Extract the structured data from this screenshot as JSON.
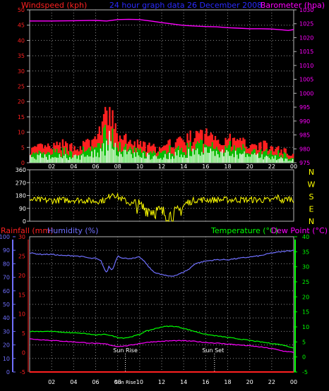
{
  "colors": {
    "background": "#000000",
    "frame": "#b8b8b8",
    "grid": "#8c8c8c",
    "wind": "#ff2020",
    "gust": "#00c000",
    "wind_light": "#ccffcc",
    "barometer": "#ff00ff",
    "title": "#2a2aff",
    "direction": "#ffff00",
    "humidity": "#7070ff",
    "temperature": "#00ff00",
    "dewpoint": "#ff00ff",
    "rainfall": "#ff2020",
    "sun": "#ffffff"
  },
  "header": {
    "windspeed_label": "Windspeed (kph)",
    "title": "24 hour graph data 26 December 2008",
    "barometer_label": "Barometer (hpa)"
  },
  "x_ticks": [
    "02",
    "04",
    "06",
    "08",
    "10",
    "12",
    "14",
    "16",
    "18",
    "20",
    "22",
    "00"
  ],
  "middle": {
    "left_ticks": [
      "360",
      "270",
      "180",
      "90",
      "0"
    ],
    "compass": [
      "N",
      "W",
      "S",
      "E",
      "N"
    ]
  },
  "bottom_header": {
    "rainfall_label": "Rainfall (mm)",
    "humidity_label": "Humidity (%)",
    "temperature_label": "Temperature (°C)",
    "dewpoint_label": "Dew Point (°C)"
  },
  "annotations": {
    "sun_rise": "Sun Rise",
    "sun_set": "Sun Set",
    "sun_rise_axis": "Sun Rise"
  },
  "chart_data": [
    {
      "type": "area",
      "name": "wind_and_pressure",
      "x_unit": "hour",
      "xlim": [
        0,
        24
      ],
      "ylim_left": [
        0,
        50
      ],
      "ylim_right": [
        975,
        1030
      ],
      "left_ticks": [
        0,
        5,
        10,
        15,
        20,
        25,
        30,
        35,
        40,
        45,
        50
      ],
      "right_ticks": [
        975,
        980,
        985,
        990,
        995,
        1000,
        1005,
        1010,
        1015,
        1020,
        1025,
        1030
      ],
      "grid": true,
      "series": [
        {
          "name": "Barometer (hpa)",
          "axis": "right",
          "x": [
            0,
            2,
            4,
            6,
            7,
            8,
            9,
            10,
            11,
            12,
            13,
            14,
            15,
            16,
            17,
            18,
            19,
            20,
            21,
            22,
            23,
            23.5,
            24
          ],
          "values": [
            1026.0,
            1026.0,
            1026.1,
            1026.2,
            1026.0,
            1026.5,
            1026.6,
            1026.5,
            1026.0,
            1025.4,
            1024.9,
            1024.4,
            1024.2,
            1024.0,
            1023.9,
            1023.6,
            1023.4,
            1023.2,
            1023.2,
            1023.1,
            1022.8,
            1022.6,
            1022.9
          ]
        }
      ],
      "wind_profile": {
        "x": [
          0,
          1,
          2,
          3,
          4,
          5,
          6,
          6.5,
          7,
          7.2,
          7.5,
          8,
          9,
          10,
          11,
          12,
          13,
          14,
          15,
          16,
          17,
          18,
          19,
          20,
          21,
          22,
          23,
          24
        ],
        "speed": [
          2,
          2.5,
          2,
          2.5,
          2,
          2.5,
          3.5,
          4.5,
          6,
          9,
          6,
          4.5,
          3.5,
          3,
          2.5,
          2,
          3,
          3.5,
          4,
          4.5,
          4,
          3.5,
          3,
          3,
          2.5,
          2,
          1.5,
          1
        ],
        "gust": [
          5,
          6,
          6,
          7,
          6,
          7,
          9,
          14,
          18,
          22,
          16,
          11,
          8,
          7,
          6,
          5,
          8,
          9,
          10,
          11,
          10,
          9,
          8,
          8,
          7,
          6,
          5,
          3
        ]
      }
    },
    {
      "type": "line",
      "name": "wind_direction",
      "x_unit": "hour",
      "xlim": [
        0,
        24
      ],
      "ylim": [
        0,
        360
      ],
      "y_ticks": [
        0,
        90,
        180,
        270,
        360
      ],
      "grid": true,
      "direction_profile": {
        "x": [
          0,
          2,
          4,
          6,
          7,
          7.5,
          8,
          9,
          10,
          11,
          12,
          13,
          13.5,
          14,
          15,
          16,
          18,
          20,
          21,
          22,
          22.5,
          23,
          23.5,
          24
        ],
        "values": [
          150,
          145,
          150,
          140,
          150,
          200,
          170,
          130,
          100,
          80,
          60,
          40,
          60,
          110,
          150,
          150,
          150,
          150,
          150,
          145,
          170,
          140,
          160,
          150
        ]
      }
    },
    {
      "type": "line",
      "name": "temperature_humidity",
      "x_unit": "hour",
      "xlim": [
        0,
        24
      ],
      "ylim_left": [
        0,
        100
      ],
      "ylim_inner": [
        -5,
        30
      ],
      "ylim_right": [
        -5,
        40
      ],
      "left_ticks": [
        0,
        10,
        20,
        30,
        40,
        50,
        60,
        70,
        80,
        90,
        100
      ],
      "inner_ticks": [
        -5,
        0,
        5,
        10,
        15,
        20,
        25,
        30
      ],
      "right_ticks": [
        -5,
        0,
        5,
        10,
        15,
        20,
        25,
        30,
        35,
        40
      ],
      "grid": true,
      "series": [
        {
          "name": "Humidity (%)",
          "axis": "left",
          "x": [
            0,
            1,
            2,
            3,
            4,
            5,
            5.5,
            6,
            6.5,
            6.8,
            7,
            7.2,
            7.5,
            8,
            8.5,
            9,
            9.5,
            10,
            10.5,
            11,
            11.5,
            12,
            12.5,
            13,
            13.5,
            14,
            14.5,
            15,
            16,
            17,
            18,
            19,
            20,
            21,
            22,
            23,
            24
          ],
          "values": [
            88,
            87,
            87,
            86,
            86,
            85,
            84,
            84,
            82,
            76,
            73,
            78,
            75,
            86,
            84,
            84,
            84,
            85,
            81,
            76,
            73,
            72,
            71,
            71,
            72,
            74,
            76,
            80,
            82,
            83,
            83,
            84,
            85,
            86,
            88,
            89,
            90
          ]
        },
        {
          "name": "Temperature (°C)",
          "axis": "right",
          "x": [
            0,
            1,
            2,
            3,
            4,
            5,
            6,
            7,
            7.5,
            8,
            8.5,
            9,
            10,
            10.5,
            11,
            11.5,
            12,
            12.5,
            13,
            13.5,
            14,
            15,
            16,
            17,
            18,
            19,
            20,
            21,
            22,
            23,
            24
          ],
          "values": [
            8.5,
            8.5,
            8.5,
            8.2,
            8,
            7.8,
            7.3,
            7.5,
            7.0,
            6.5,
            6.3,
            6.5,
            7.5,
            8.5,
            9.0,
            9.5,
            10,
            10.2,
            10.2,
            10,
            9.5,
            8.5,
            7.5,
            7,
            6.5,
            6,
            5.5,
            5,
            4.5,
            4,
            3
          ]
        },
        {
          "name": "Dew Point (°C)",
          "axis": "right",
          "x": [
            0,
            2,
            4,
            6,
            7,
            7.5,
            8,
            8.5,
            9,
            10,
            11,
            12,
            13,
            14,
            15,
            16,
            17,
            18,
            19,
            20,
            21,
            22,
            23,
            24
          ],
          "values": [
            6,
            5.5,
            5,
            4.5,
            4.3,
            3.8,
            3.5,
            3.6,
            3.8,
            4.5,
            5,
            5.2,
            5.4,
            5.4,
            5.2,
            4.8,
            4.6,
            4.3,
            4,
            3.7,
            3.3,
            2.8,
            2,
            1.5
          ]
        },
        {
          "name": "Rainfall (mm)",
          "axis": "left",
          "x": [
            0,
            24
          ],
          "values": [
            0,
            0
          ]
        }
      ],
      "sun_rise_hour": 8.7,
      "sun_set_hour": 16.8
    }
  ]
}
